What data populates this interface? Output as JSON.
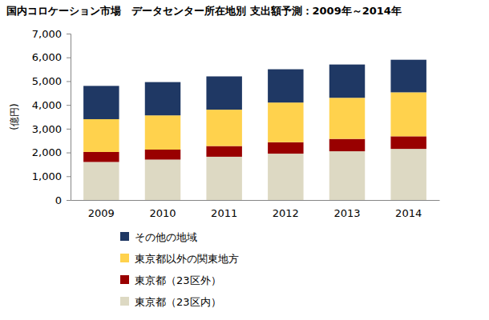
{
  "chart_data": {
    "type": "bar",
    "title": "国内コロケーション市場　データセンター所在地別 支出額予測：2009年～2014年",
    "y_label": "(億円)",
    "categories": [
      "2009",
      "2010",
      "2011",
      "2012",
      "2013",
      "2014"
    ],
    "stacked": true,
    "legend": "bottom",
    "grid": false,
    "ylim": [
      0,
      7000
    ],
    "yticks": [
      0,
      {
        "value": 1000,
        "label": "1,000"
      },
      {
        "value": 2000,
        "label": "2,000"
      },
      {
        "value": 3000,
        "label": "3,000"
      },
      {
        "value": 4000,
        "label": "4,000"
      },
      {
        "value": 5000,
        "label": "5,000"
      },
      {
        "value": 6000,
        "label": "6,000"
      },
      {
        "value": 7000,
        "label": "7,000"
      }
    ],
    "series": [
      {
        "name": "東京都（23区内）",
        "color": "#ddd9c3",
        "values": [
          1600,
          1700,
          1820,
          1950,
          2050,
          2150
        ]
      },
      {
        "name": "東京都（23区外）",
        "color": "#990000",
        "values": [
          420,
          420,
          450,
          480,
          520,
          530
        ]
      },
      {
        "name": "東京都以外の関東地方",
        "color": "#ffd24d",
        "values": [
          1380,
          1440,
          1530,
          1670,
          1730,
          1850
        ]
      },
      {
        "name": "その他の地域",
        "color": "#1f3864",
        "values": [
          1400,
          1400,
          1400,
          1400,
          1400,
          1370
        ]
      }
    ]
  }
}
